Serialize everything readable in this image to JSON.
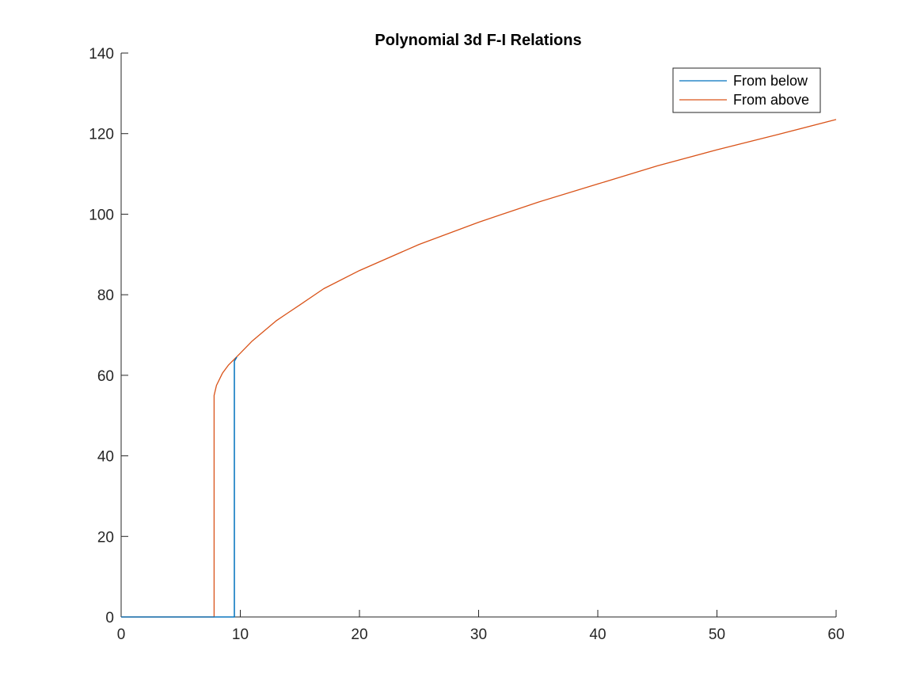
{
  "chart_data": {
    "type": "line",
    "title": "Polynomial 3d F-I Relations",
    "xlabel": "",
    "ylabel": "",
    "xlim": [
      0,
      60
    ],
    "ylim": [
      0,
      140
    ],
    "xticks": [
      0,
      10,
      20,
      30,
      40,
      50,
      60
    ],
    "yticks": [
      0,
      20,
      40,
      60,
      80,
      100,
      120,
      140
    ],
    "grid": false,
    "legend_position": "top-right",
    "series": [
      {
        "name": "From below",
        "color": "#0072BD",
        "points": [
          [
            0,
            0
          ],
          [
            9.5,
            0
          ],
          [
            9.5,
            63.5
          ],
          [
            9.7,
            64.5
          ]
        ]
      },
      {
        "name": "From above",
        "color": "#D95319",
        "points": [
          [
            0,
            0
          ],
          [
            7.8,
            0
          ],
          [
            7.8,
            55
          ],
          [
            8,
            57.5
          ],
          [
            8.5,
            60.5
          ],
          [
            9,
            62.5
          ],
          [
            9.5,
            64
          ],
          [
            10,
            65.5
          ],
          [
            11,
            68.5
          ],
          [
            12,
            71
          ],
          [
            13,
            73.5
          ],
          [
            14,
            75.5
          ],
          [
            15,
            77.5
          ],
          [
            17,
            81.5
          ],
          [
            20,
            86
          ],
          [
            25,
            92.5
          ],
          [
            30,
            98
          ],
          [
            35,
            103
          ],
          [
            40,
            107.5
          ],
          [
            45,
            112
          ],
          [
            50,
            116
          ],
          [
            55,
            119.7
          ],
          [
            60,
            123.5
          ]
        ]
      }
    ]
  }
}
